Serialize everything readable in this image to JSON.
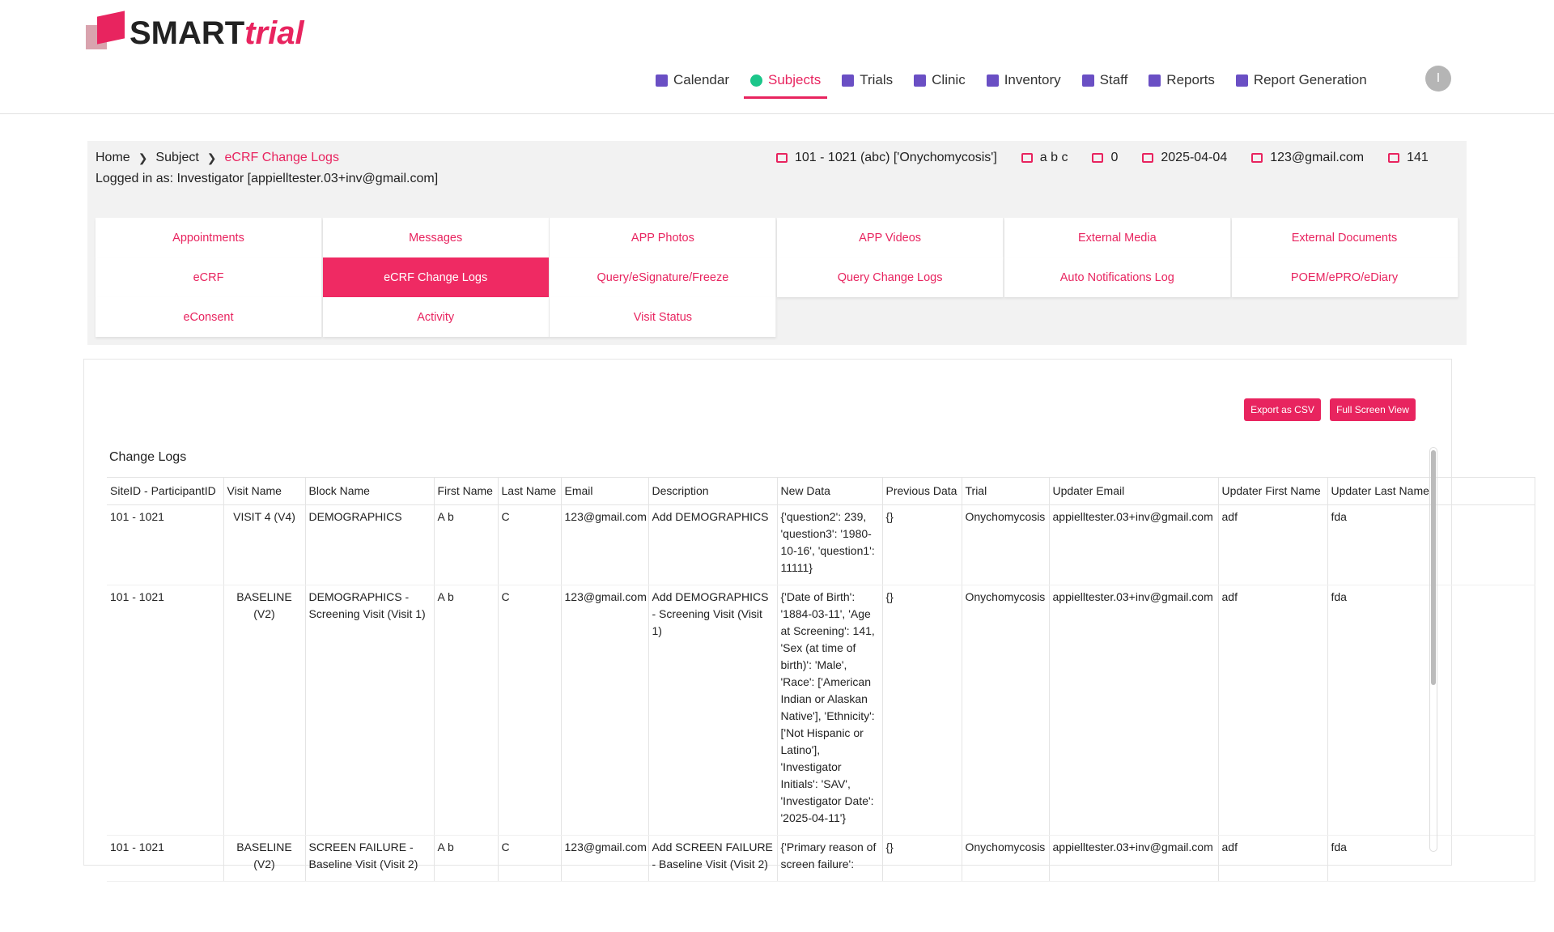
{
  "header": {
    "logo_bold": "SMART",
    "logo_italic": "trial",
    "nav": [
      "Calendar",
      "Subjects",
      "Trials",
      "Clinic",
      "Inventory",
      "Staff",
      "Reports",
      "Report Generation"
    ],
    "active_nav": 1,
    "user_initial": "I"
  },
  "breadcrumb": [
    "Home",
    "Subject",
    "eCRF Change Logs"
  ],
  "logged_in": "Logged in as: Investigator [appielltester.03+inv@gmail.com]",
  "subject_info": [
    "101 - 1021 (abc) ['Onychomycosis']",
    "a b c",
    "0",
    "2025-04-04",
    "123@gmail.com",
    "141"
  ],
  "tabs": [
    "Appointments",
    "Messages",
    "APP Photos",
    "APP Videos",
    "External Media",
    "External Documents",
    "eCRF",
    "eCRF Change Logs",
    "Query/eSignature/Freeze",
    "Query Change Logs",
    "Auto Notifications Log",
    "POEM/ePRO/eDiary",
    "eConsent",
    "Activity",
    "Visit Status"
  ],
  "active_tab": 7,
  "buttons": [
    "Export as CSV",
    "Full Screen View"
  ],
  "table": {
    "title": "Change Logs",
    "columns": [
      "SiteID - ParticipantID",
      "Visit Name",
      "Block Name",
      "First Name",
      "Last Name",
      "Email",
      "Description",
      "New Data",
      "Previous Data",
      "Trial",
      "Updater Email",
      "Updater First Name",
      "Updater Last Name"
    ],
    "rows": [
      [
        "101 - 1021",
        "VISIT 4 (V4)",
        "DEMOGRAPHICS",
        "A b",
        "C",
        "123@gmail.com",
        "Add DEMOGRAPHICS",
        "{'question2': 239, 'question3': '1980-10-16', 'question1': 11111}",
        "{}",
        "Onychomycosis",
        "appielltester.03+inv@gmail.com",
        "adf",
        "fda"
      ],
      [
        "101 - 1021",
        "BASELINE (V2)",
        "DEMOGRAPHICS - Screening Visit (Visit 1)",
        "A b",
        "C",
        "123@gmail.com",
        "Add DEMOGRAPHICS - Screening Visit (Visit 1)",
        "{'Date of Birth': '1884-03-11', 'Age at Screening': 141, 'Sex (at time of birth)': 'Male', 'Race': ['American Indian or Alaskan Native'], 'Ethnicity': ['Not Hispanic or Latino'], 'Investigator Initials': 'SAV', 'Investigator Date': '2025-04-11'}",
        "{}",
        "Onychomycosis",
        "appielltester.03+inv@gmail.com",
        "adf",
        "fda"
      ],
      [
        "101 - 1021",
        "BASELINE (V2)",
        "SCREEN FAILURE - Baseline Visit (Visit 2)",
        "A b",
        "C",
        "123@gmail.com",
        "Add SCREEN FAILURE - Baseline Visit (Visit 2)",
        "{'Primary reason of screen failure':",
        "{}",
        "Onychomycosis",
        "appielltester.03+inv@gmail.com",
        "adf",
        "fda"
      ]
    ]
  }
}
